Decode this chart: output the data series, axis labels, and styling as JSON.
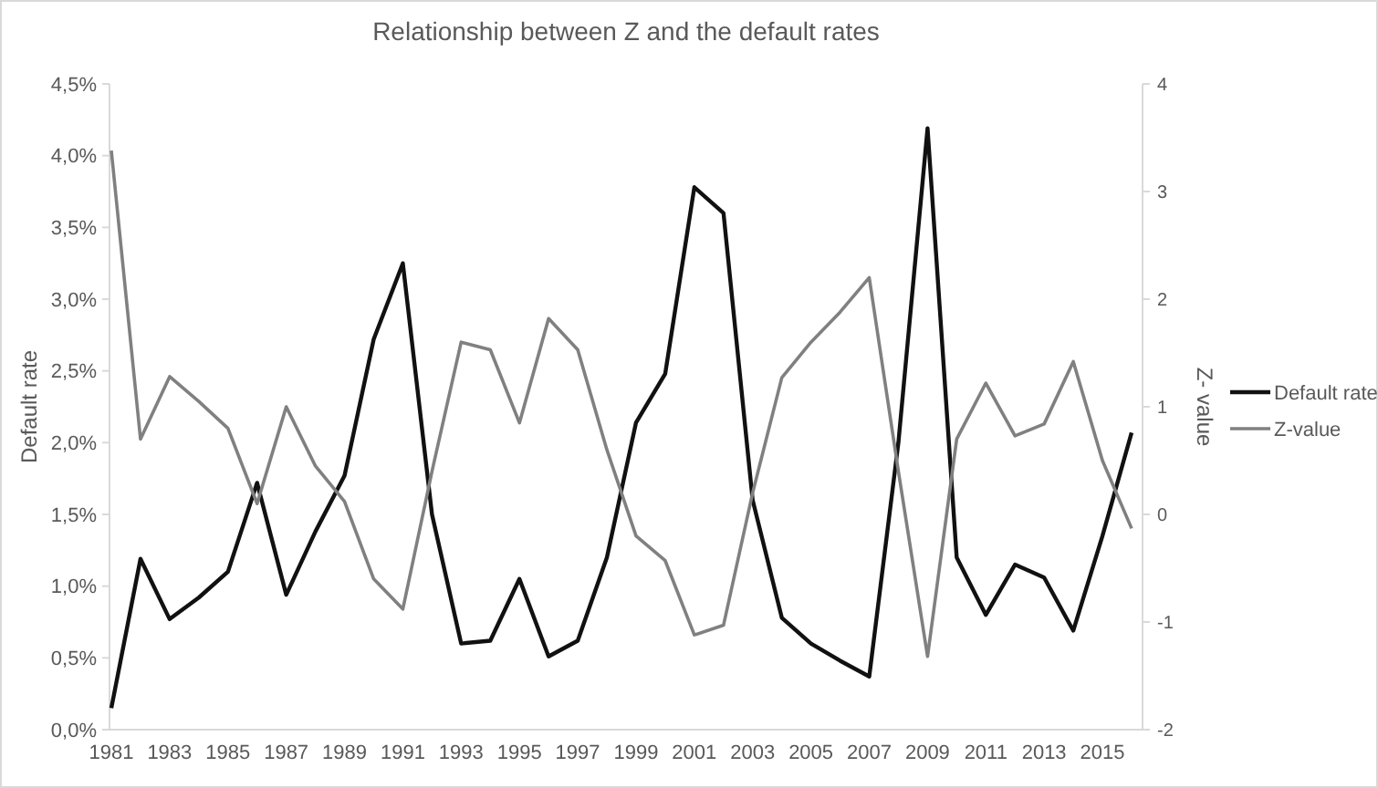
{
  "chart_data": {
    "type": "line",
    "title": "Relationship between Z and the default rates",
    "ylabel": "Default rate",
    "y2label": "Z- value",
    "categories": [
      "1981",
      null,
      "1983",
      null,
      "1985",
      null,
      "1987",
      null,
      "1989",
      null,
      "1991",
      null,
      "1993",
      null,
      "1995",
      null,
      "1997",
      null,
      "1999",
      null,
      "2001",
      null,
      "2003",
      null,
      "2005",
      null,
      "2007",
      null,
      "2009",
      null,
      "2011",
      null,
      "2013",
      null,
      "2015",
      null
    ],
    "series": [
      {
        "name": "Default rate",
        "color": "#111111",
        "values": [
          0.15,
          1.19,
          0.77,
          0.92,
          1.1,
          1.72,
          0.94,
          1.38,
          1.77,
          2.72,
          3.25,
          1.5,
          0.6,
          0.62,
          1.05,
          0.51,
          0.62,
          1.2,
          2.14,
          2.48,
          3.78,
          3.6,
          1.6,
          0.78,
          0.6,
          0.48,
          0.37,
          2.0,
          4.19,
          1.2,
          0.8,
          1.15,
          1.06,
          0.69,
          1.35,
          2.07
        ]
      },
      {
        "name": "Z-value",
        "color": "#808080",
        "axis": "y2",
        "values": [
          3.38,
          0.7,
          1.28,
          1.05,
          0.8,
          0.1,
          1.0,
          0.45,
          0.12,
          -0.6,
          -0.88,
          0.4,
          1.6,
          1.53,
          0.85,
          1.82,
          1.53,
          0.6,
          -0.2,
          -0.43,
          -1.12,
          -1.03,
          0.2,
          1.27,
          1.6,
          1.88,
          2.2,
          0.4,
          -1.32,
          0.7,
          1.22,
          0.73,
          0.84,
          1.42,
          0.5,
          -0.13
        ]
      }
    ],
    "ylim": [
      0,
      4.5
    ],
    "yticks": [
      {
        "value": 0,
        "label": "0,0%"
      },
      {
        "value": 0.5,
        "label": "0,5%"
      },
      {
        "value": 1,
        "label": "1,0%"
      },
      {
        "value": 1.5,
        "label": "1,5%"
      },
      {
        "value": 2,
        "label": "2,0%"
      },
      {
        "value": 2.5,
        "label": "2,5%"
      },
      {
        "value": 3,
        "label": "3,0%"
      },
      {
        "value": 3.5,
        "label": "3,5%"
      },
      {
        "value": 4,
        "label": "4,0%"
      },
      {
        "value": 4.5,
        "label": "4,5%"
      }
    ],
    "y2lim": [
      -2,
      4
    ],
    "y2ticks": [
      -2,
      -1,
      0,
      1,
      2,
      3,
      4
    ],
    "legend": "right",
    "grid": false,
    "marker": "none",
    "line_style": "solid"
  }
}
